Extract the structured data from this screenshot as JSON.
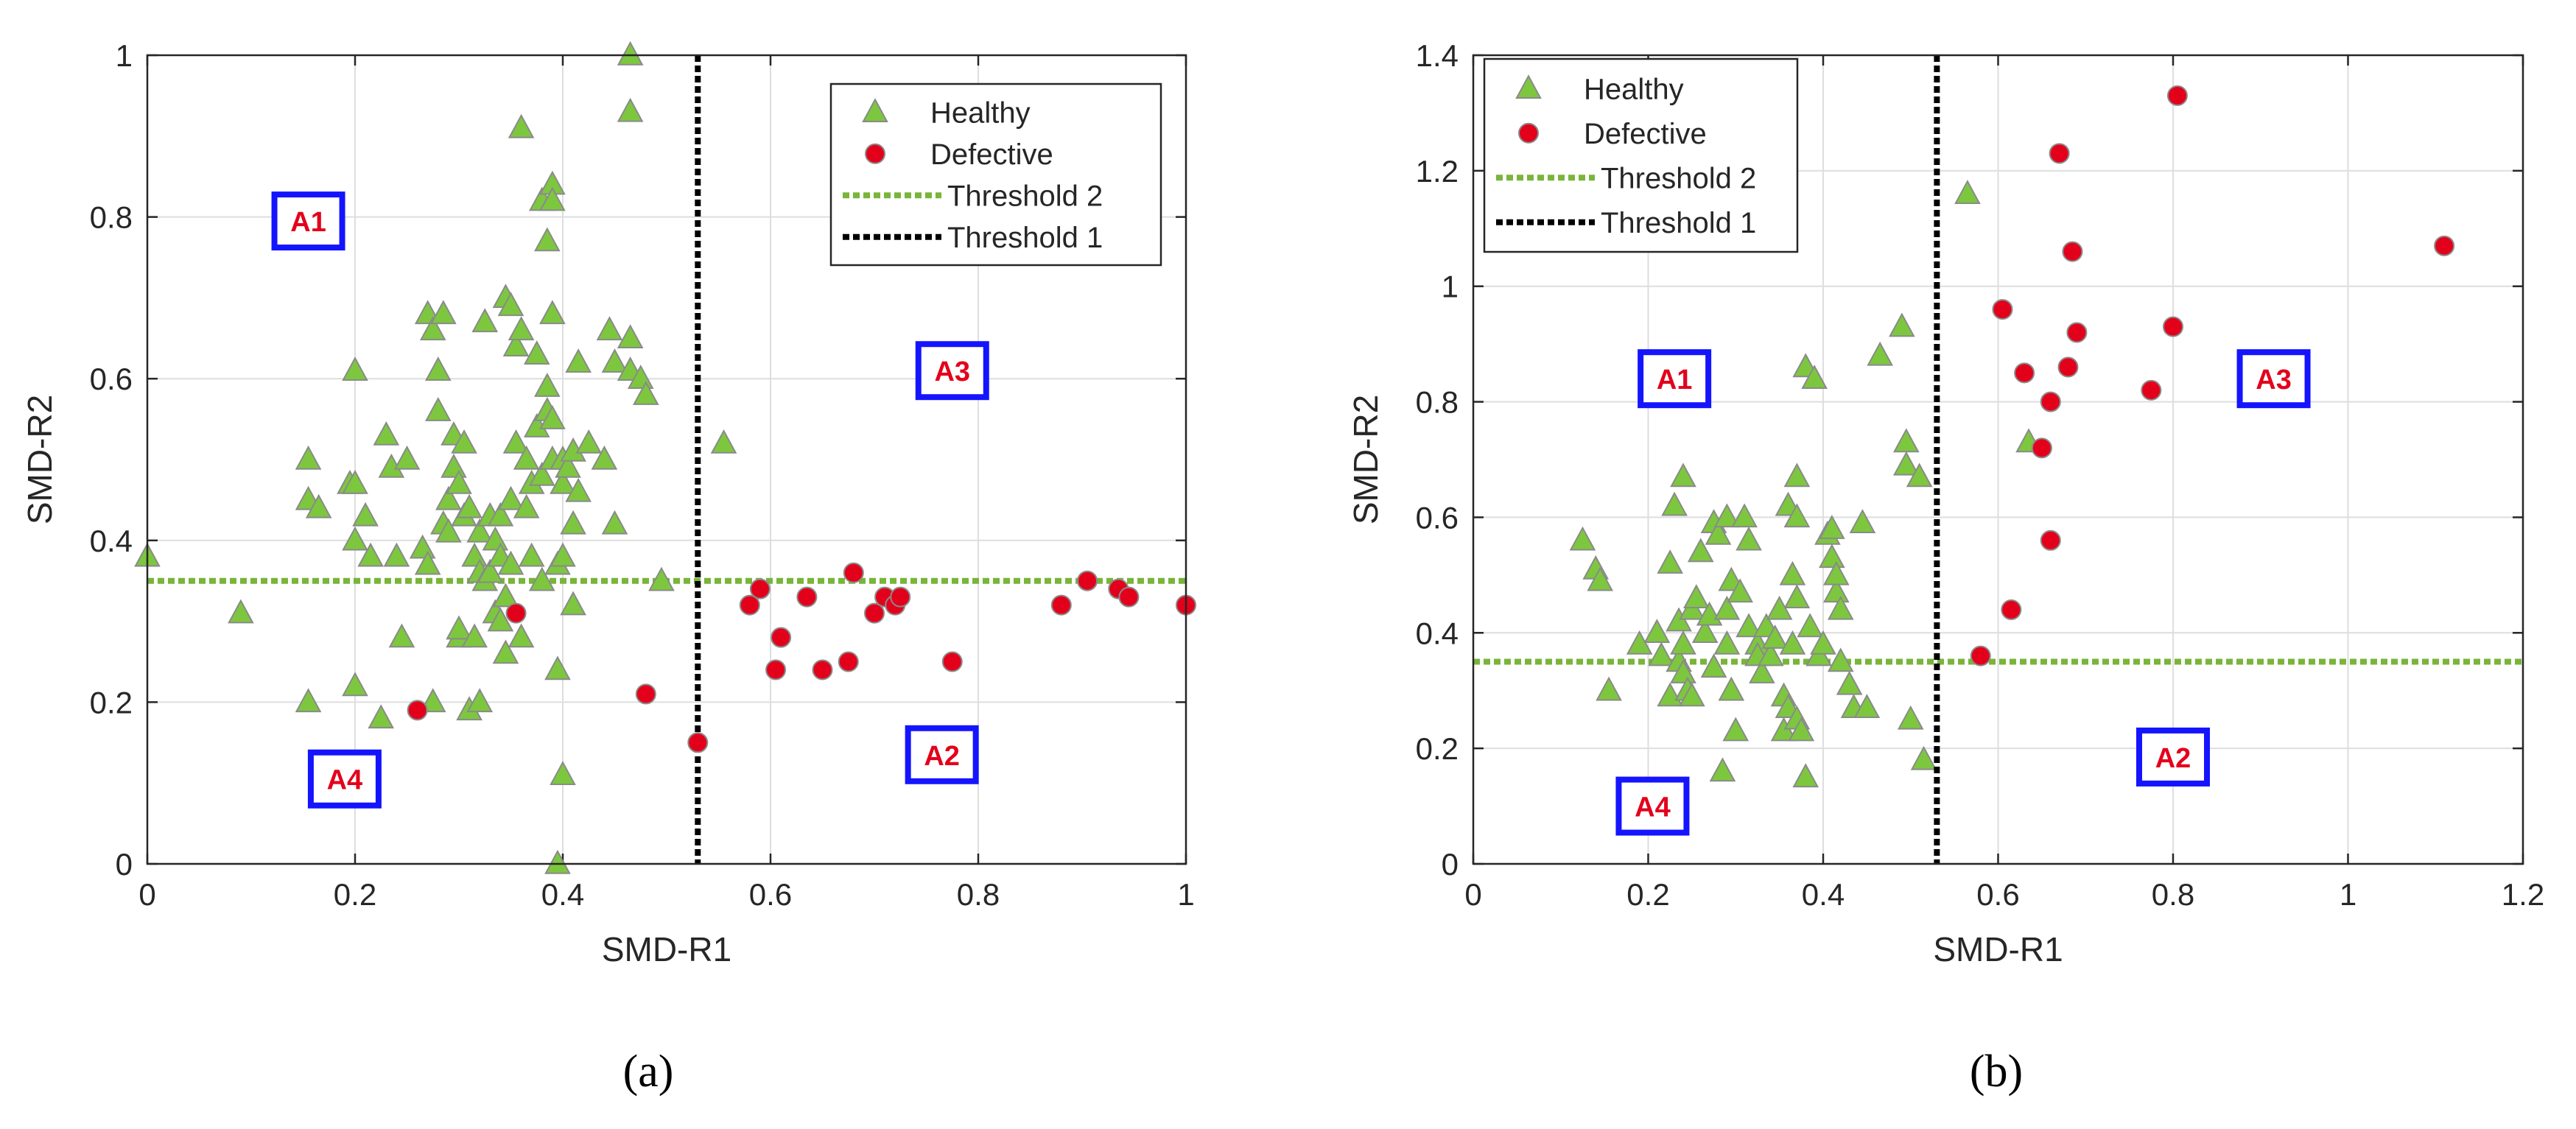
{
  "figure": {
    "panel_labels": [
      "(a)",
      "(b)"
    ]
  },
  "colors": {
    "healthy": "#7dc73f",
    "healthy_edge": "#8a8a8a",
    "defective": "#e3001b",
    "defective_edge": "#8a8a8a",
    "threshold2": "#78b53a",
    "threshold1": "#000000",
    "region_box": "#1414ff",
    "region_text": "#e3001b",
    "grid": "#dedede"
  },
  "chart_data": [
    {
      "type": "scatter",
      "panel": "(a)",
      "xlabel": "SMD-R1",
      "ylabel": "SMD-R2",
      "xlim": [
        0,
        1
      ],
      "ylim": [
        0,
        1
      ],
      "xticks": [
        0,
        0.2,
        0.4,
        0.6,
        0.8,
        1
      ],
      "yticks": [
        0,
        0.2,
        0.4,
        0.6,
        0.8,
        1
      ],
      "xtick_labels": [
        "0",
        "0.2",
        "0.4",
        "0.6",
        "0.8",
        "1"
      ],
      "ytick_labels": [
        "0",
        "0.2",
        "0.4",
        "0.6",
        "0.8",
        "1"
      ],
      "grid": true,
      "legend_position": "top-right",
      "legend": [
        "Healthy",
        "Defective",
        "Threshold 2",
        "Threshold 1"
      ],
      "threshold1_x": 0.53,
      "threshold2_y": 0.35,
      "regions": [
        {
          "label": "A1",
          "x": 0.155,
          "y": 0.795
        },
        {
          "label": "A2",
          "x": 0.765,
          "y": 0.135
        },
        {
          "label": "A3",
          "x": 0.775,
          "y": 0.61
        },
        {
          "label": "A4",
          "x": 0.19,
          "y": 0.105
        }
      ],
      "series": [
        {
          "name": "Healthy",
          "marker": "triangle",
          "points": [
            [
              0.0,
              0.38
            ],
            [
              0.09,
              0.31
            ],
            [
              0.155,
              0.5
            ],
            [
              0.155,
              0.45
            ],
            [
              0.155,
              0.2
            ],
            [
              0.165,
              0.44
            ],
            [
              0.195,
              0.47
            ],
            [
              0.2,
              0.47
            ],
            [
              0.2,
              0.4
            ],
            [
              0.2,
              0.22
            ],
            [
              0.2,
              0.61
            ],
            [
              0.21,
              0.43
            ],
            [
              0.215,
              0.38
            ],
            [
              0.225,
              0.18
            ],
            [
              0.23,
              0.53
            ],
            [
              0.235,
              0.49
            ],
            [
              0.24,
              0.38
            ],
            [
              0.245,
              0.28
            ],
            [
              0.25,
              0.5
            ],
            [
              0.265,
              0.39
            ],
            [
              0.27,
              0.68
            ],
            [
              0.27,
              0.37
            ],
            [
              0.275,
              0.2
            ],
            [
              0.275,
              0.66
            ],
            [
              0.28,
              0.61
            ],
            [
              0.28,
              0.56
            ],
            [
              0.285,
              0.68
            ],
            [
              0.285,
              0.42
            ],
            [
              0.29,
              0.45
            ],
            [
              0.29,
              0.41
            ],
            [
              0.295,
              0.53
            ],
            [
              0.295,
              0.49
            ],
            [
              0.3,
              0.28
            ],
            [
              0.3,
              0.47
            ],
            [
              0.3,
              0.29
            ],
            [
              0.305,
              0.52
            ],
            [
              0.305,
              0.43
            ],
            [
              0.31,
              0.19
            ],
            [
              0.31,
              0.44
            ],
            [
              0.315,
              0.38
            ],
            [
              0.315,
              0.28
            ],
            [
              0.32,
              0.2
            ],
            [
              0.32,
              0.41
            ],
            [
              0.32,
              0.36
            ],
            [
              0.325,
              0.67
            ],
            [
              0.325,
              0.35
            ],
            [
              0.33,
              0.43
            ],
            [
              0.33,
              0.36
            ],
            [
              0.335,
              0.31
            ],
            [
              0.335,
              0.4
            ],
            [
              0.34,
              0.38
            ],
            [
              0.34,
              0.43
            ],
            [
              0.34,
              0.3
            ],
            [
              0.345,
              0.7
            ],
            [
              0.345,
              0.33
            ],
            [
              0.345,
              0.26
            ],
            [
              0.35,
              0.69
            ],
            [
              0.35,
              0.37
            ],
            [
              0.35,
              0.45
            ],
            [
              0.355,
              0.52
            ],
            [
              0.355,
              0.64
            ],
            [
              0.36,
              0.91
            ],
            [
              0.36,
              0.66
            ],
            [
              0.36,
              0.28
            ],
            [
              0.365,
              0.5
            ],
            [
              0.365,
              0.44
            ],
            [
              0.37,
              0.38
            ],
            [
              0.37,
              0.47
            ],
            [
              0.375,
              0.63
            ],
            [
              0.375,
              0.54
            ],
            [
              0.38,
              0.82
            ],
            [
              0.38,
              0.35
            ],
            [
              0.38,
              0.48
            ],
            [
              0.385,
              0.59
            ],
            [
              0.385,
              0.56
            ],
            [
              0.385,
              0.77
            ],
            [
              0.39,
              0.84
            ],
            [
              0.39,
              0.82
            ],
            [
              0.39,
              0.68
            ],
            [
              0.39,
              0.5
            ],
            [
              0.39,
              0.55
            ],
            [
              0.395,
              0.0
            ],
            [
              0.395,
              0.37
            ],
            [
              0.395,
              0.24
            ],
            [
              0.4,
              0.11
            ],
            [
              0.4,
              0.38
            ],
            [
              0.4,
              0.47
            ],
            [
              0.4,
              0.5
            ],
            [
              0.405,
              0.49
            ],
            [
              0.41,
              0.42
            ],
            [
              0.41,
              0.32
            ],
            [
              0.41,
              0.51
            ],
            [
              0.415,
              0.46
            ],
            [
              0.415,
              0.62
            ],
            [
              0.425,
              0.52
            ],
            [
              0.44,
              0.5
            ],
            [
              0.445,
              0.66
            ],
            [
              0.45,
              0.62
            ],
            [
              0.45,
              0.42
            ],
            [
              0.465,
              1.0
            ],
            [
              0.465,
              0.65
            ],
            [
              0.465,
              0.61
            ],
            [
              0.465,
              0.93
            ],
            [
              0.475,
              0.6
            ],
            [
              0.48,
              0.58
            ],
            [
              0.495,
              0.35
            ],
            [
              0.555,
              0.52
            ]
          ]
        },
        {
          "name": "Defective",
          "marker": "circle",
          "points": [
            [
              0.26,
              0.19
            ],
            [
              0.355,
              0.31
            ],
            [
              0.48,
              0.21
            ],
            [
              0.53,
              0.15
            ],
            [
              0.58,
              0.32
            ],
            [
              0.59,
              0.34
            ],
            [
              0.605,
              0.24
            ],
            [
              0.61,
              0.28
            ],
            [
              0.635,
              0.33
            ],
            [
              0.65,
              0.24
            ],
            [
              0.675,
              0.25
            ],
            [
              0.68,
              0.36
            ],
            [
              0.7,
              0.31
            ],
            [
              0.71,
              0.33
            ],
            [
              0.72,
              0.32
            ],
            [
              0.725,
              0.33
            ],
            [
              0.775,
              0.25
            ],
            [
              0.88,
              0.32
            ],
            [
              0.905,
              0.35
            ],
            [
              0.935,
              0.34
            ],
            [
              0.945,
              0.33
            ],
            [
              1.0,
              0.32
            ]
          ]
        }
      ]
    },
    {
      "type": "scatter",
      "panel": "(b)",
      "xlabel": "SMD-R1",
      "ylabel": "SMD-R2",
      "xlim": [
        0,
        1.2
      ],
      "ylim": [
        0,
        1.4
      ],
      "xticks": [
        0,
        0.2,
        0.4,
        0.6,
        0.8,
        1,
        1.2
      ],
      "yticks": [
        0,
        0.2,
        0.4,
        0.6,
        0.8,
        1,
        1.2,
        1.4
      ],
      "xtick_labels": [
        "0",
        "0.2",
        "0.4",
        "0.6",
        "0.8",
        "1",
        "1.2"
      ],
      "ytick_labels": [
        "0",
        "0.2",
        "0.4",
        "0.6",
        "0.8",
        "1",
        "1.2",
        "1.4"
      ],
      "grid": true,
      "legend_position": "top-left",
      "legend": [
        "Healthy",
        "Defective",
        "Threshold 2",
        "Threshold 1"
      ],
      "threshold1_x": 0.53,
      "threshold2_y": 0.35,
      "regions": [
        {
          "label": "A1",
          "x": 0.23,
          "y": 0.84
        },
        {
          "label": "A2",
          "x": 0.8,
          "y": 0.185
        },
        {
          "label": "A3",
          "x": 0.915,
          "y": 0.84
        },
        {
          "label": "A4",
          "x": 0.205,
          "y": 0.1
        }
      ],
      "series": [
        {
          "name": "Healthy",
          "marker": "triangle",
          "points": [
            [
              0.125,
              0.56
            ],
            [
              0.14,
              0.51
            ],
            [
              0.145,
              0.49
            ],
            [
              0.155,
              0.3
            ],
            [
              0.19,
              0.38
            ],
            [
              0.21,
              0.4
            ],
            [
              0.215,
              0.36
            ],
            [
              0.225,
              0.52
            ],
            [
              0.225,
              0.29
            ],
            [
              0.23,
              0.62
            ],
            [
              0.235,
              0.42
            ],
            [
              0.235,
              0.35
            ],
            [
              0.24,
              0.67
            ],
            [
              0.24,
              0.38
            ],
            [
              0.24,
              0.33
            ],
            [
              0.245,
              0.3
            ],
            [
              0.25,
              0.44
            ],
            [
              0.25,
              0.29
            ],
            [
              0.255,
              0.46
            ],
            [
              0.26,
              0.54
            ],
            [
              0.265,
              0.4
            ],
            [
              0.27,
              0.43
            ],
            [
              0.275,
              0.59
            ],
            [
              0.275,
              0.34
            ],
            [
              0.28,
              0.57
            ],
            [
              0.285,
              0.16
            ],
            [
              0.29,
              0.6
            ],
            [
              0.29,
              0.44
            ],
            [
              0.29,
              0.38
            ],
            [
              0.295,
              0.49
            ],
            [
              0.295,
              0.3
            ],
            [
              0.3,
              0.23
            ],
            [
              0.305,
              0.47
            ],
            [
              0.31,
              0.6
            ],
            [
              0.315,
              0.41
            ],
            [
              0.315,
              0.56
            ],
            [
              0.325,
              0.38
            ],
            [
              0.325,
              0.36
            ],
            [
              0.33,
              0.33
            ],
            [
              0.335,
              0.41
            ],
            [
              0.34,
              0.36
            ],
            [
              0.345,
              0.39
            ],
            [
              0.35,
              0.44
            ],
            [
              0.355,
              0.29
            ],
            [
              0.355,
              0.23
            ],
            [
              0.36,
              0.27
            ],
            [
              0.36,
              0.62
            ],
            [
              0.365,
              0.38
            ],
            [
              0.365,
              0.5
            ],
            [
              0.37,
              0.46
            ],
            [
              0.37,
              0.67
            ],
            [
              0.37,
              0.6
            ],
            [
              0.37,
              0.25
            ],
            [
              0.375,
              0.23
            ],
            [
              0.38,
              0.15
            ],
            [
              0.38,
              0.86
            ],
            [
              0.385,
              0.41
            ],
            [
              0.39,
              0.84
            ],
            [
              0.395,
              0.36
            ],
            [
              0.4,
              0.38
            ],
            [
              0.405,
              0.57
            ],
            [
              0.41,
              0.53
            ],
            [
              0.41,
              0.58
            ],
            [
              0.415,
              0.47
            ],
            [
              0.415,
              0.5
            ],
            [
              0.42,
              0.44
            ],
            [
              0.42,
              0.35
            ],
            [
              0.43,
              0.31
            ],
            [
              0.435,
              0.27
            ],
            [
              0.445,
              0.59
            ],
            [
              0.45,
              0.27
            ],
            [
              0.465,
              0.88
            ],
            [
              0.49,
              0.93
            ],
            [
              0.495,
              0.69
            ],
            [
              0.495,
              0.73
            ],
            [
              0.5,
              0.25
            ],
            [
              0.51,
              0.67
            ],
            [
              0.515,
              0.18
            ],
            [
              0.565,
              1.16
            ],
            [
              0.635,
              0.73
            ]
          ]
        },
        {
          "name": "Defective",
          "marker": "circle",
          "points": [
            [
              0.58,
              0.36
            ],
            [
              0.605,
              0.96
            ],
            [
              0.615,
              0.44
            ],
            [
              0.63,
              0.85
            ],
            [
              0.65,
              0.72
            ],
            [
              0.66,
              0.56
            ],
            [
              0.66,
              0.8
            ],
            [
              0.67,
              1.23
            ],
            [
              0.68,
              0.86
            ],
            [
              0.685,
              1.06
            ],
            [
              0.69,
              0.92
            ],
            [
              0.775,
              0.82
            ],
            [
              0.8,
              0.93
            ],
            [
              0.805,
              1.33
            ],
            [
              1.11,
              1.07
            ]
          ]
        }
      ]
    }
  ]
}
